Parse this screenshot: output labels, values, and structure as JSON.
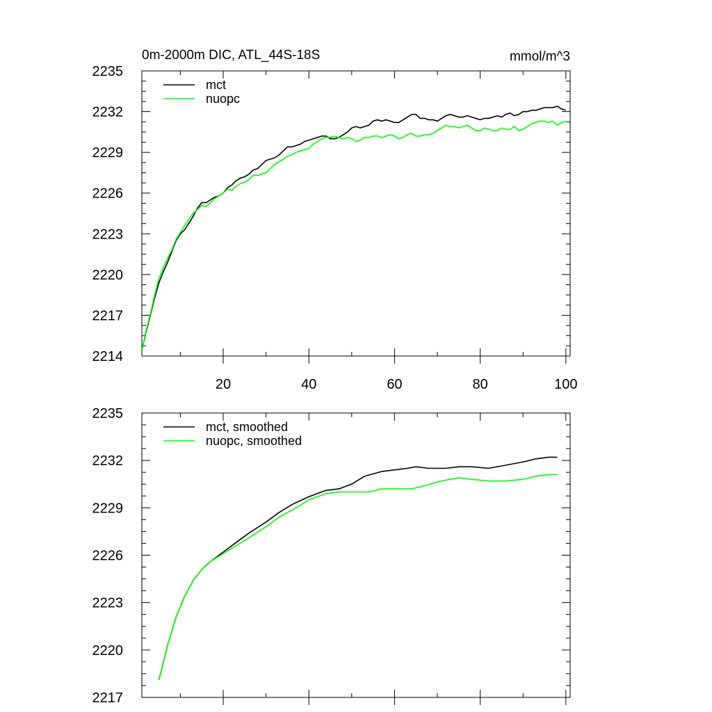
{
  "colors": {
    "mct": "#000000",
    "nuopc": "#00ff00"
  },
  "chart_data": [
    {
      "type": "line",
      "title": "0m-2000m DIC, ATL_44S-18S",
      "subtitle": "mmol/m^3",
      "xlabel": "",
      "ylabel": "",
      "xlim": [
        1,
        101
      ],
      "ylim": [
        2214,
        2235
      ],
      "xticks": [
        20,
        40,
        60,
        80,
        100
      ],
      "yticks": [
        2214,
        2217,
        2220,
        2223,
        2226,
        2229,
        2232,
        2235
      ],
      "show_x_tick_labels": true,
      "legend_position": "top-left",
      "series": [
        {
          "name": "mct",
          "color": "#000000",
          "points": [
            [
              1,
              2214.4
            ],
            [
              2,
              2215.8
            ],
            [
              3,
              2217.0
            ],
            [
              4,
              2218.3
            ],
            [
              5,
              2219.4
            ],
            [
              6,
              2220.2
            ],
            [
              7,
              2220.9
            ],
            [
              8,
              2221.7
            ],
            [
              9,
              2222.5
            ],
            [
              10,
              2223.0
            ],
            [
              11,
              2223.3
            ],
            [
              12,
              2223.8
            ],
            [
              13,
              2224.3
            ],
            [
              14,
              2224.9
            ],
            [
              15,
              2225.3
            ],
            [
              16,
              2225.3
            ],
            [
              17,
              2225.5
            ],
            [
              18,
              2225.7
            ],
            [
              19,
              2225.8
            ],
            [
              20,
              2226.0
            ],
            [
              21,
              2226.4
            ],
            [
              22,
              2226.6
            ],
            [
              23,
              2226.9
            ],
            [
              24,
              2227.1
            ],
            [
              25,
              2227.2
            ],
            [
              26,
              2227.4
            ],
            [
              27,
              2227.7
            ],
            [
              28,
              2227.8
            ],
            [
              29,
              2228.1
            ],
            [
              30,
              2228.4
            ],
            [
              31,
              2228.5
            ],
            [
              32,
              2228.6
            ],
            [
              33,
              2228.8
            ],
            [
              34,
              2229.1
            ],
            [
              35,
              2229.4
            ],
            [
              36,
              2229.4
            ],
            [
              37,
              2229.5
            ],
            [
              38,
              2229.6
            ],
            [
              39,
              2229.8
            ],
            [
              40,
              2229.9
            ],
            [
              41,
              2230.0
            ],
            [
              42,
              2230.1
            ],
            [
              43,
              2230.2
            ],
            [
              44,
              2230.2
            ],
            [
              45,
              2230.0
            ],
            [
              46,
              2230.0
            ],
            [
              47,
              2230.1
            ],
            [
              48,
              2230.3
            ],
            [
              49,
              2230.5
            ],
            [
              50,
              2230.8
            ],
            [
              51,
              2230.9
            ],
            [
              52,
              2230.8
            ],
            [
              53,
              2230.9
            ],
            [
              54,
              2231.0
            ],
            [
              55,
              2231.3
            ],
            [
              56,
              2231.4
            ],
            [
              57,
              2231.3
            ],
            [
              58,
              2231.4
            ],
            [
              59,
              2231.3
            ],
            [
              60,
              2231.2
            ],
            [
              61,
              2231.2
            ],
            [
              62,
              2231.4
            ],
            [
              63,
              2231.6
            ],
            [
              64,
              2231.8
            ],
            [
              65,
              2231.8
            ],
            [
              66,
              2231.5
            ],
            [
              67,
              2231.5
            ],
            [
              68,
              2231.4
            ],
            [
              69,
              2231.4
            ],
            [
              70,
              2231.3
            ],
            [
              71,
              2231.5
            ],
            [
              72,
              2231.7
            ],
            [
              73,
              2231.8
            ],
            [
              74,
              2231.7
            ],
            [
              75,
              2231.6
            ],
            [
              76,
              2231.6
            ],
            [
              77,
              2231.7
            ],
            [
              78,
              2231.6
            ],
            [
              79,
              2231.5
            ],
            [
              80,
              2231.4
            ],
            [
              81,
              2231.5
            ],
            [
              82,
              2231.5
            ],
            [
              83,
              2231.6
            ],
            [
              84,
              2231.7
            ],
            [
              85,
              2231.6
            ],
            [
              86,
              2231.8
            ],
            [
              87,
              2231.9
            ],
            [
              88,
              2231.7
            ],
            [
              89,
              2231.8
            ],
            [
              90,
              2232.0
            ],
            [
              91,
              2232.0
            ],
            [
              92,
              2232.1
            ],
            [
              93,
              2232.1
            ],
            [
              94,
              2232.2
            ],
            [
              95,
              2232.3
            ],
            [
              96,
              2232.3
            ],
            [
              97,
              2232.3
            ],
            [
              98,
              2232.4
            ],
            [
              99,
              2232.2
            ],
            [
              100,
              2232.1
            ]
          ]
        },
        {
          "name": "nuopc",
          "color": "#00ff00",
          "points": [
            [
              1,
              2214.4
            ],
            [
              2,
              2215.9
            ],
            [
              3,
              2217.1
            ],
            [
              4,
              2218.5
            ],
            [
              5,
              2219.7
            ],
            [
              6,
              2220.5
            ],
            [
              7,
              2221.2
            ],
            [
              8,
              2221.8
            ],
            [
              9,
              2222.6
            ],
            [
              10,
              2223.1
            ],
            [
              11,
              2223.6
            ],
            [
              12,
              2224.1
            ],
            [
              13,
              2224.5
            ],
            [
              14,
              2224.8
            ],
            [
              15,
              2225.1
            ],
            [
              16,
              2225.0
            ],
            [
              17,
              2225.3
            ],
            [
              18,
              2225.6
            ],
            [
              19,
              2225.8
            ],
            [
              20,
              2226.0
            ],
            [
              21,
              2226.3
            ],
            [
              22,
              2226.2
            ],
            [
              23,
              2226.5
            ],
            [
              24,
              2226.7
            ],
            [
              25,
              2226.8
            ],
            [
              26,
              2227.0
            ],
            [
              27,
              2227.3
            ],
            [
              28,
              2227.3
            ],
            [
              29,
              2227.4
            ],
            [
              30,
              2227.5
            ],
            [
              31,
              2227.8
            ],
            [
              32,
              2228.1
            ],
            [
              33,
              2228.3
            ],
            [
              34,
              2228.5
            ],
            [
              35,
              2228.7
            ],
            [
              36,
              2228.8
            ],
            [
              37,
              2229.0
            ],
            [
              38,
              2229.1
            ],
            [
              39,
              2229.2
            ],
            [
              40,
              2229.3
            ],
            [
              41,
              2229.6
            ],
            [
              42,
              2229.8
            ],
            [
              43,
              2230.0
            ],
            [
              44,
              2230.1
            ],
            [
              45,
              2230.1
            ],
            [
              46,
              2230.2
            ],
            [
              47,
              2230.1
            ],
            [
              48,
              2230.0
            ],
            [
              49,
              2230.1
            ],
            [
              50,
              2230.0
            ],
            [
              51,
              2229.8
            ],
            [
              52,
              2229.9
            ],
            [
              53,
              2230.1
            ],
            [
              54,
              2230.1
            ],
            [
              55,
              2230.2
            ],
            [
              56,
              2230.2
            ],
            [
              57,
              2230.1
            ],
            [
              58,
              2230.2
            ],
            [
              59,
              2230.3
            ],
            [
              60,
              2230.2
            ],
            [
              61,
              2230.0
            ],
            [
              62,
              2230.1
            ],
            [
              63,
              2230.3
            ],
            [
              64,
              2230.4
            ],
            [
              65,
              2230.2
            ],
            [
              66,
              2230.2
            ],
            [
              67,
              2230.3
            ],
            [
              68,
              2230.3
            ],
            [
              69,
              2230.4
            ],
            [
              70,
              2230.6
            ],
            [
              71,
              2230.8
            ],
            [
              72,
              2231.0
            ],
            [
              73,
              2230.9
            ],
            [
              74,
              2230.9
            ],
            [
              75,
              2230.8
            ],
            [
              76,
              2230.9
            ],
            [
              77,
              2231.0
            ],
            [
              78,
              2230.8
            ],
            [
              79,
              2230.6
            ],
            [
              80,
              2230.6
            ],
            [
              81,
              2230.8
            ],
            [
              82,
              2230.7
            ],
            [
              83,
              2230.6
            ],
            [
              84,
              2230.6
            ],
            [
              85,
              2230.8
            ],
            [
              86,
              2230.7
            ],
            [
              87,
              2230.7
            ],
            [
              88,
              2230.9
            ],
            [
              89,
              2230.6
            ],
            [
              90,
              2230.7
            ],
            [
              91,
              2230.9
            ],
            [
              92,
              2231.1
            ],
            [
              93,
              2231.2
            ],
            [
              94,
              2231.3
            ],
            [
              95,
              2231.3
            ],
            [
              96,
              2231.2
            ],
            [
              97,
              2231.3
            ],
            [
              98,
              2231.0
            ],
            [
              99,
              2231.2
            ],
            [
              100,
              2231.3
            ]
          ]
        }
      ]
    },
    {
      "type": "line",
      "title": "",
      "subtitle": "",
      "xlabel": "",
      "ylabel": "",
      "xlim": [
        1,
        101
      ],
      "ylim": [
        2217,
        2235
      ],
      "xticks": [
        20,
        40,
        60,
        80,
        100
      ],
      "yticks": [
        2217,
        2220,
        2223,
        2226,
        2229,
        2232,
        2235
      ],
      "show_x_tick_labels": false,
      "legend_position": "top-left",
      "series": [
        {
          "name": "mct, smoothed",
          "color": "#000000",
          "points": [
            [
              5,
              2218.1
            ],
            [
              7,
              2220.3
            ],
            [
              9,
              2222.1
            ],
            [
              11,
              2223.4
            ],
            [
              13,
              2224.4
            ],
            [
              15,
              2225.1
            ],
            [
              17,
              2225.6
            ],
            [
              20,
              2226.2
            ],
            [
              23,
              2226.8
            ],
            [
              26,
              2227.4
            ],
            [
              30,
              2228.1
            ],
            [
              33,
              2228.7
            ],
            [
              36,
              2229.2
            ],
            [
              40,
              2229.7
            ],
            [
              44,
              2230.1
            ],
            [
              47,
              2230.2
            ],
            [
              50,
              2230.5
            ],
            [
              53,
              2231.0
            ],
            [
              57,
              2231.3
            ],
            [
              60,
              2231.4
            ],
            [
              63,
              2231.5
            ],
            [
              65,
              2231.6
            ],
            [
              68,
              2231.5
            ],
            [
              72,
              2231.5
            ],
            [
              75,
              2231.6
            ],
            [
              78,
              2231.6
            ],
            [
              82,
              2231.5
            ],
            [
              86,
              2231.7
            ],
            [
              90,
              2231.9
            ],
            [
              93,
              2232.1
            ],
            [
              96,
              2232.2
            ],
            [
              98,
              2232.2
            ]
          ]
        },
        {
          "name": "nuopc, smoothed",
          "color": "#00ff00",
          "points": [
            [
              5,
              2218.1
            ],
            [
              7,
              2220.3
            ],
            [
              9,
              2222.1
            ],
            [
              11,
              2223.4
            ],
            [
              13,
              2224.4
            ],
            [
              15,
              2225.1
            ],
            [
              17,
              2225.6
            ],
            [
              20,
              2226.1
            ],
            [
              23,
              2226.6
            ],
            [
              26,
              2227.1
            ],
            [
              30,
              2227.8
            ],
            [
              33,
              2228.4
            ],
            [
              37,
              2229.0
            ],
            [
              40,
              2229.5
            ],
            [
              44,
              2229.9
            ],
            [
              47,
              2230.0
            ],
            [
              50,
              2230.0
            ],
            [
              54,
              2230.0
            ],
            [
              57,
              2230.2
            ],
            [
              60,
              2230.2
            ],
            [
              64,
              2230.2
            ],
            [
              67,
              2230.4
            ],
            [
              71,
              2230.7
            ],
            [
              75,
              2230.9
            ],
            [
              78,
              2230.8
            ],
            [
              82,
              2230.7
            ],
            [
              86,
              2230.7
            ],
            [
              90,
              2230.8
            ],
            [
              93,
              2231.0
            ],
            [
              96,
              2231.1
            ],
            [
              98,
              2231.1
            ]
          ]
        }
      ]
    }
  ]
}
